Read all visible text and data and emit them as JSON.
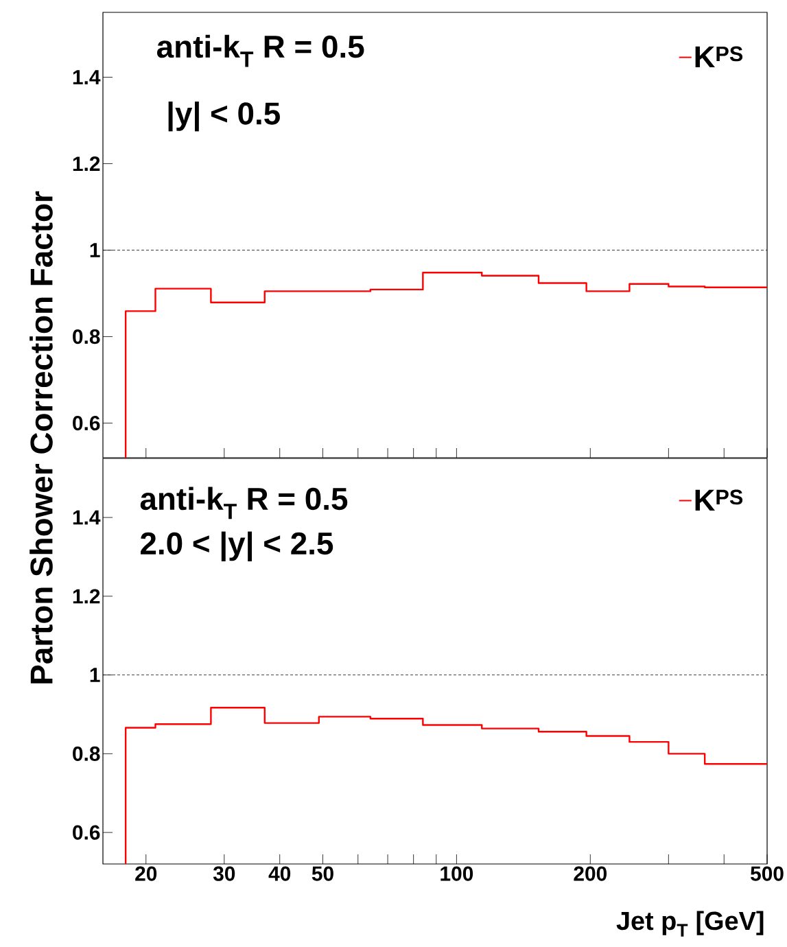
{
  "chart_data": [
    {
      "type": "histogram",
      "ylabel": "Parton Shower Correction Factor",
      "annotations": [
        "anti-k$_{T}$ R = 0.5",
        "|y| < 0.5"
      ],
      "bins": [
        18,
        21,
        28,
        37,
        49,
        64,
        84,
        114,
        153,
        196,
        245,
        300,
        362,
        500
      ],
      "series": [
        {
          "name": "K$^{PS}$",
          "color": "#ff0000",
          "values": [
            0.859,
            0.911,
            0.879,
            0.905,
            0.905,
            0.909,
            0.948,
            0.941,
            0.924,
            0.905,
            0.922,
            0.916,
            0.914
          ]
        }
      ],
      "log": "x",
      "xlim": [
        16,
        500
      ],
      "ylim": [
        0.52,
        1.55
      ],
      "xticks": [
        20,
        30,
        40,
        50,
        {
          "value": 60,
          "label": null
        },
        {
          "value": 70,
          "label": null
        },
        {
          "value": 80,
          "label": null
        },
        {
          "value": 90,
          "label": null
        },
        100,
        200,
        {
          "value": 300,
          "label": null
        },
        {
          "value": 400,
          "label": null
        },
        500
      ],
      "yticks": [
        0.6,
        0.8,
        1,
        1.2,
        1.4
      ],
      "tick_labels": "y",
      "grid": false,
      "legend": "top right",
      "ref_lines": [
        {
          "axis": "y",
          "value": 1,
          "color": "#000000",
          "line_style": "dashed"
        }
      ]
    },
    {
      "type": "histogram",
      "xlabel": "Jet p$_{T}$ [GeV]",
      "annotations": [
        "anti-k$_{T}$ R = 0.5",
        "2.0 < |y| < 2.5"
      ],
      "bins": [
        18,
        21,
        28,
        37,
        49,
        64,
        84,
        114,
        153,
        196,
        245,
        300,
        362,
        500
      ],
      "series": [
        {
          "name": "K$^{PS}$",
          "color": "#ff0000",
          "values": [
            0.866,
            0.875,
            0.917,
            0.878,
            0.894,
            0.889,
            0.873,
            0.864,
            0.856,
            0.845,
            0.83,
            0.8,
            0.774
          ]
        }
      ],
      "log": "x",
      "xlim": [
        16,
        500
      ],
      "ylim": [
        0.52,
        1.55
      ],
      "xticks": [
        20,
        30,
        40,
        50,
        {
          "value": 60,
          "label": null
        },
        {
          "value": 70,
          "label": null
        },
        {
          "value": 80,
          "label": null
        },
        {
          "value": 90,
          "label": null
        },
        100,
        200,
        {
          "value": 300,
          "label": null
        },
        {
          "value": 400,
          "label": null
        },
        500
      ],
      "yticks": [
        0.6,
        0.8,
        1,
        1.2,
        1.4
      ],
      "grid": false,
      "legend": "top right",
      "ref_lines": [
        {
          "axis": "y",
          "value": 1,
          "color": "#000000",
          "line_style": "dashed"
        }
      ]
    }
  ]
}
